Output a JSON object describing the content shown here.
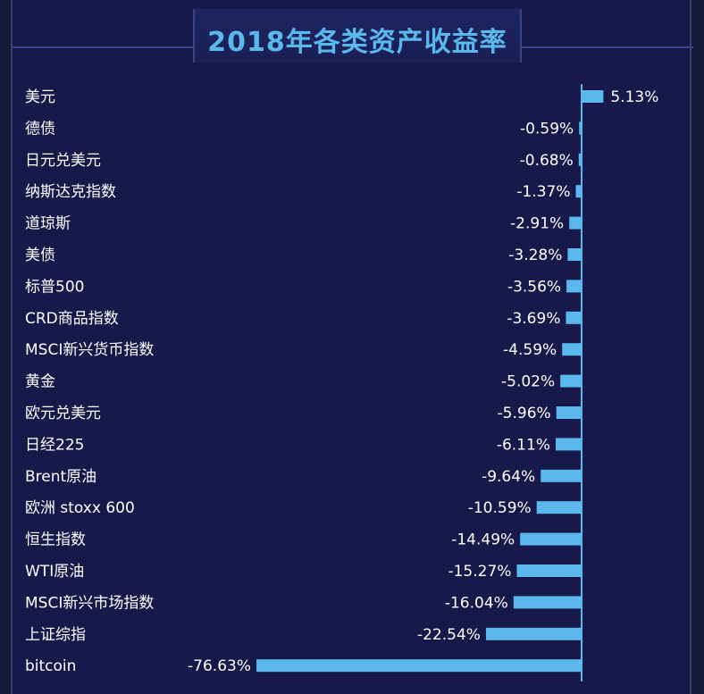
{
  "chart_data": {
    "type": "bar",
    "orientation": "horizontal",
    "title": "2018年各类资产收益率",
    "categories": [
      "美元",
      "德债",
      "日元兑美元",
      "纳斯达克指数",
      "道琼斯",
      "美债",
      "标普500",
      "CRD商品指数",
      "MSCI新兴货币指数",
      "黄金",
      "欧元兑美元",
      "日经225",
      "Brent原油",
      "欧洲 stoxx 600",
      "恒生指数",
      "WTI原油",
      "MSCI新兴市场指数",
      "上证综指",
      "bitcoin"
    ],
    "values": [
      5.13,
      -0.59,
      -0.68,
      -1.37,
      -2.91,
      -3.28,
      -3.56,
      -3.69,
      -4.59,
      -5.02,
      -5.96,
      -6.11,
      -9.64,
      -10.59,
      -14.49,
      -15.27,
      -16.04,
      -22.54,
      -76.63
    ],
    "value_labels": [
      "5.13%",
      "-0.59%",
      "-0.68%",
      "-1.37%",
      "-2.91%",
      "-3.28%",
      "-3.56%",
      "-3.69%",
      "-4.59%",
      "-5.02%",
      "-5.96%",
      "-6.11%",
      "-9.64%",
      "-10.59%",
      "-14.49%",
      "-15.27%",
      "-16.04%",
      "-22.54%",
      "-76.63%"
    ],
    "unit": "%",
    "bar_color": "#5ab8ec",
    "axis_color": "#5ab8ec",
    "grid": false,
    "legend": "none"
  },
  "colors": {
    "background": "#16194a",
    "title": "#5ab8ec",
    "text": "#ffffff"
  }
}
